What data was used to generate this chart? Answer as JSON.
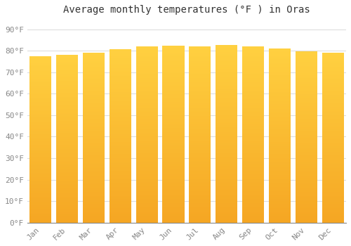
{
  "title": "Average monthly temperatures (°F ) in Oras",
  "months": [
    "Jan",
    "Feb",
    "Mar",
    "Apr",
    "May",
    "Jun",
    "Jul",
    "Aug",
    "Sep",
    "Oct",
    "Nov",
    "Dec"
  ],
  "values": [
    77.5,
    78.0,
    79.2,
    80.8,
    82.0,
    82.5,
    82.0,
    82.7,
    82.0,
    81.0,
    79.7,
    79.2
  ],
  "bar_color_bottom": "#F5A623",
  "bar_color_top": "#FFD040",
  "background_color": "#FFFFFF",
  "plot_bg_color": "#FFFFFF",
  "grid_color": "#DDDDDD",
  "yticks": [
    0,
    10,
    20,
    30,
    40,
    50,
    60,
    70,
    80,
    90
  ],
  "ytick_labels": [
    "0°F",
    "10°F",
    "20°F",
    "30°F",
    "40°F",
    "50°F",
    "60°F",
    "70°F",
    "80°F",
    "90°F"
  ],
  "ylim": [
    0,
    95
  ],
  "title_fontsize": 10,
  "tick_fontsize": 8,
  "font_family": "monospace",
  "bar_width": 0.82,
  "n_gradient_steps": 200
}
